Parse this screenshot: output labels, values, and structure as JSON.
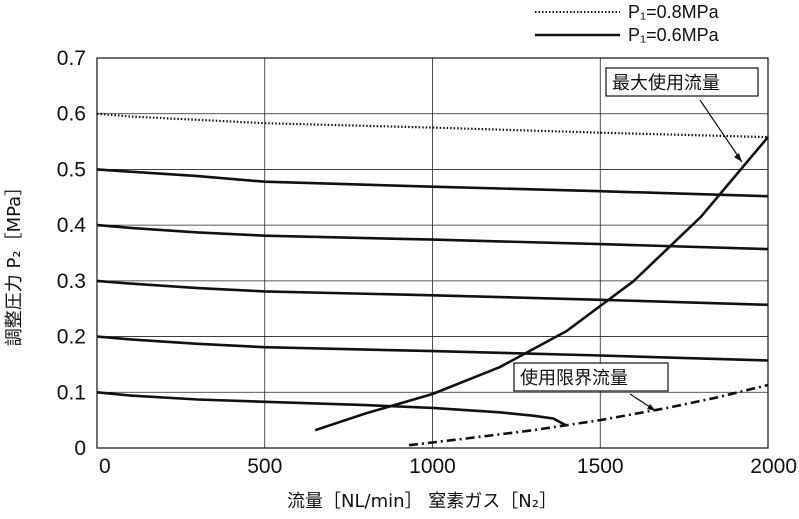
{
  "chart_data": {
    "type": "line",
    "xlabel": "流量［NL/min］ 窒素ガス［N₂］",
    "ylabel": "調整圧力 P₂［MPa］",
    "xlim": [
      0,
      2000
    ],
    "ylim": [
      0,
      0.7
    ],
    "x_ticks": [
      "0",
      "500",
      "1000",
      "1500",
      "2000"
    ],
    "y_ticks": [
      "0",
      "0.1",
      "0.2",
      "0.3",
      "0.4",
      "0.5",
      "0.6",
      "0.7"
    ],
    "grid": true,
    "legend_position": "top-right",
    "legend": [
      {
        "label": "P₁=0.8MPa",
        "style": "dotted"
      },
      {
        "label": "P₁=0.6MPa",
        "style": "solid"
      }
    ],
    "series": [
      {
        "style": "dotted",
        "x": [
          0,
          100,
          500,
          1000,
          1500,
          2000
        ],
        "y": [
          0.6,
          0.595,
          0.583,
          0.575,
          0.566,
          0.558
        ]
      },
      {
        "style": "solid",
        "x": [
          0,
          100,
          300,
          500,
          1000,
          1500,
          2000
        ],
        "y": [
          0.5,
          0.496,
          0.488,
          0.478,
          0.469,
          0.461,
          0.452
        ]
      },
      {
        "style": "solid",
        "x": [
          0,
          100,
          300,
          500,
          1000,
          1500,
          2000
        ],
        "y": [
          0.4,
          0.395,
          0.387,
          0.381,
          0.374,
          0.366,
          0.357
        ]
      },
      {
        "style": "solid",
        "x": [
          0,
          100,
          300,
          500,
          1000,
          1500,
          2000
        ],
        "y": [
          0.3,
          0.295,
          0.287,
          0.281,
          0.274,
          0.266,
          0.257
        ]
      },
      {
        "style": "solid",
        "x": [
          0,
          100,
          300,
          500,
          1000,
          1500,
          2000
        ],
        "y": [
          0.2,
          0.195,
          0.187,
          0.181,
          0.174,
          0.166,
          0.157
        ]
      },
      {
        "style": "solid",
        "x": [
          0,
          100,
          300,
          500,
          800,
          1000,
          1200,
          1300,
          1360,
          1400
        ],
        "y": [
          0.1,
          0.094,
          0.087,
          0.083,
          0.077,
          0.072,
          0.064,
          0.058,
          0.053,
          0.04
        ]
      }
    ],
    "curves": [
      {
        "label": "最大使用流量",
        "style": "solid",
        "x": [
          650,
          800,
          1000,
          1200,
          1400,
          1600,
          1800,
          2000
        ],
        "y": [
          0.032,
          0.062,
          0.097,
          0.145,
          0.21,
          0.3,
          0.415,
          0.558
        ]
      },
      {
        "label": "使用限界流量",
        "style": "dashdot",
        "x": [
          930,
          1100,
          1300,
          1500,
          1700,
          1850,
          2000
        ],
        "y": [
          0.005,
          0.017,
          0.032,
          0.05,
          0.072,
          0.091,
          0.113
        ]
      }
    ],
    "annotations": [
      "最大使用流量",
      "使用限界流量"
    ]
  }
}
